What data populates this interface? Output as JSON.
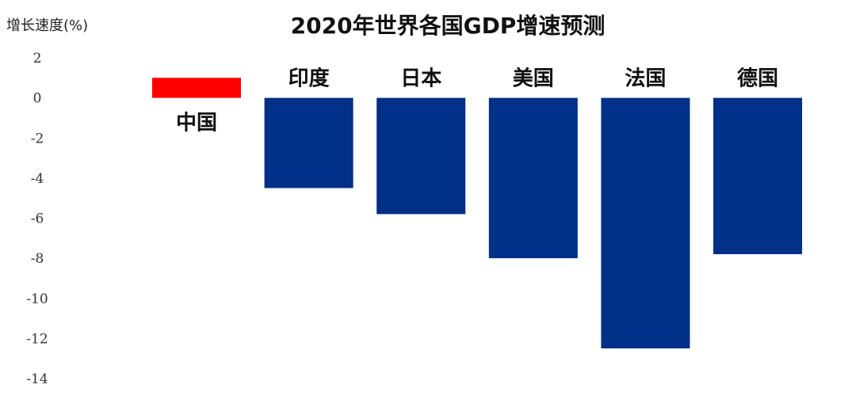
{
  "chart_data": {
    "type": "bar",
    "title": "2020年世界各国GDP增速预测",
    "ylabel": "增长速度(%)",
    "xlabel": "",
    "categories": [
      "中国",
      "印度",
      "日本",
      "美国",
      "法国",
      "德国"
    ],
    "values": [
      1.0,
      -4.5,
      -5.8,
      -8.0,
      -12.5,
      -7.8
    ],
    "colors": [
      "#ff0000",
      "#003087",
      "#003087",
      "#003087",
      "#003087",
      "#003087"
    ],
    "ylim": [
      -14,
      2
    ],
    "yticks": [
      2,
      0,
      -2,
      -4,
      -6,
      -8,
      -10,
      -12,
      -14
    ],
    "grid": false,
    "legend": "none"
  }
}
